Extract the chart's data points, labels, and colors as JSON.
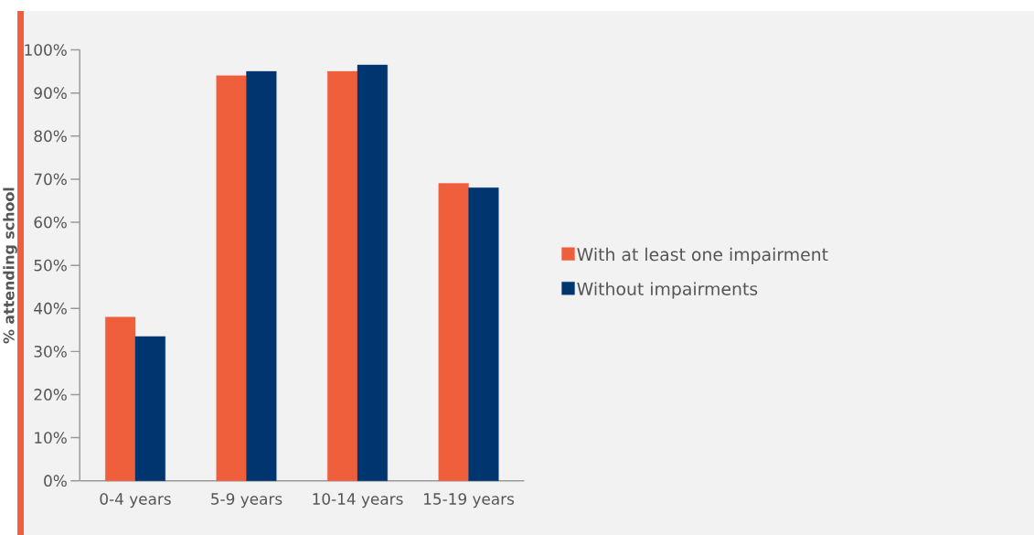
{
  "chart_data": {
    "type": "bar",
    "ylabel": "% attending school",
    "categories": [
      "0-4 years",
      "5-9 years",
      "10-14 years",
      "15-19 years"
    ],
    "series": [
      {
        "name": "With at least one impairment",
        "color": "#f05f3c",
        "values": [
          38,
          94,
          95,
          69
        ]
      },
      {
        "name": "Without impairments",
        "color": "#003670",
        "values": [
          33.5,
          95,
          96.5,
          68
        ]
      }
    ],
    "ylim": [
      0,
      100
    ],
    "yticks": [
      {
        "value": 0,
        "label": "0%"
      },
      {
        "value": 10,
        "label": "10%"
      },
      {
        "value": 20,
        "label": "20%"
      },
      {
        "value": 30,
        "label": "30%"
      },
      {
        "value": 40,
        "label": "40%"
      },
      {
        "value": 50,
        "label": "50%"
      },
      {
        "value": 60,
        "label": "60%"
      },
      {
        "value": 70,
        "label": "70%"
      },
      {
        "value": 80,
        "label": "80%"
      },
      {
        "value": 90,
        "label": "90%"
      },
      {
        "value": 100,
        "label": "100%"
      }
    ],
    "legend": "right",
    "grid": false
  }
}
